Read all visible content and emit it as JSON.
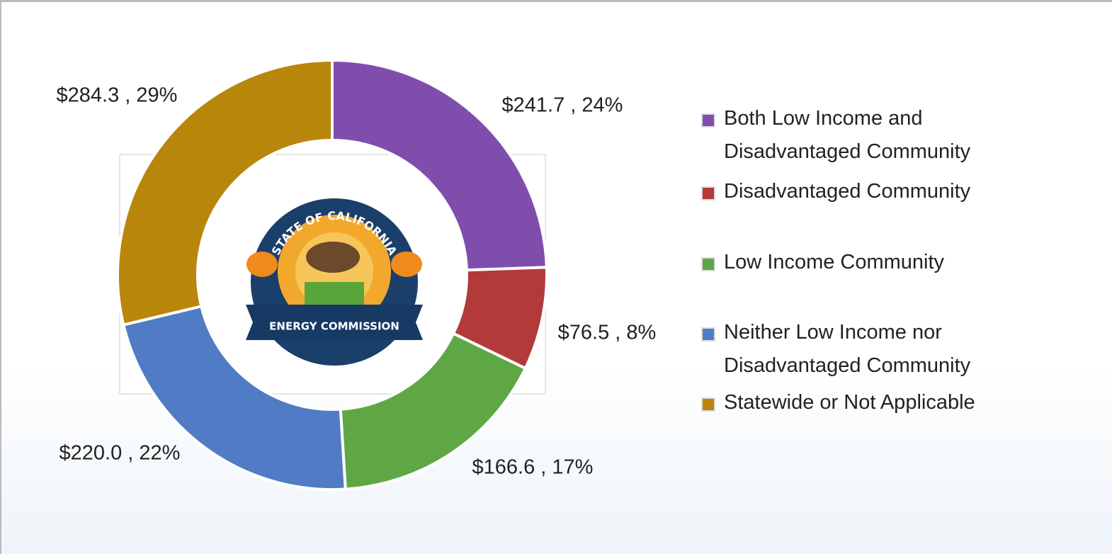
{
  "chart_data": {
    "type": "donut",
    "categories": [
      "Both Low Income and Disadvantaged Community",
      "Disadvantaged Community",
      "Low Income Community",
      "Neither Low Income nor Disadvantaged Community",
      "Statewide or Not Applicable"
    ],
    "values": [
      241.7,
      76.5,
      166.6,
      220.0,
      284.3
    ],
    "value_labels": [
      "$241.7 , 24%",
      "$76.5 , 8%",
      "$166.6 , 17%",
      "$220.0 , 22%",
      "$284.3 , 29%"
    ],
    "colors": [
      "#7f4ead",
      "#b23a3a",
      "#5fa745",
      "#4f7cc4",
      "#b8860b"
    ],
    "legend": "right",
    "logo": {
      "arc_text": "STATE OF CALIFORNIA",
      "banner_text": "ENERGY COMMISSION"
    }
  }
}
